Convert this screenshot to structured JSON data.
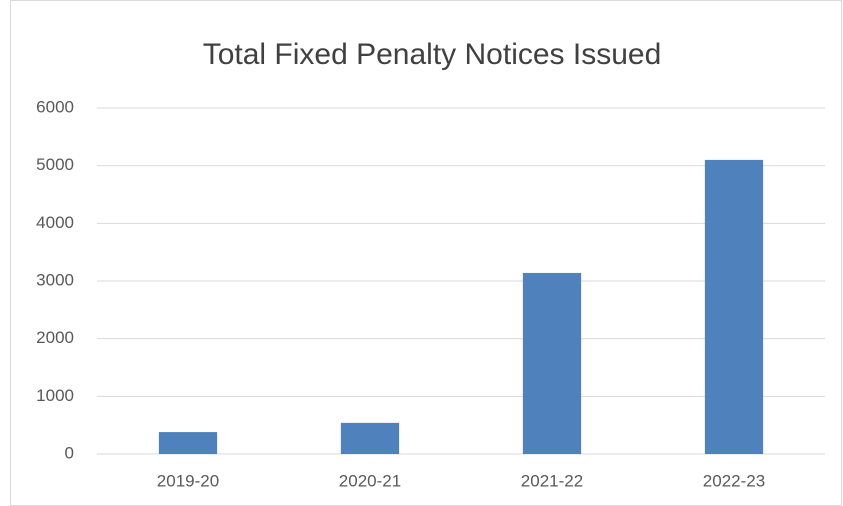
{
  "chart_data": {
    "type": "bar",
    "title": "Total Fixed Penalty Notices Issued",
    "categories": [
      "2019-20",
      "2020-21",
      "2021-22",
      "2022-23"
    ],
    "values": [
      380,
      540,
      3140,
      5100
    ],
    "color": "#4f81bd",
    "ylim": [
      0,
      6000
    ],
    "yticks": [
      0,
      1000,
      2000,
      3000,
      4000,
      5000,
      6000
    ],
    "grid": true
  }
}
